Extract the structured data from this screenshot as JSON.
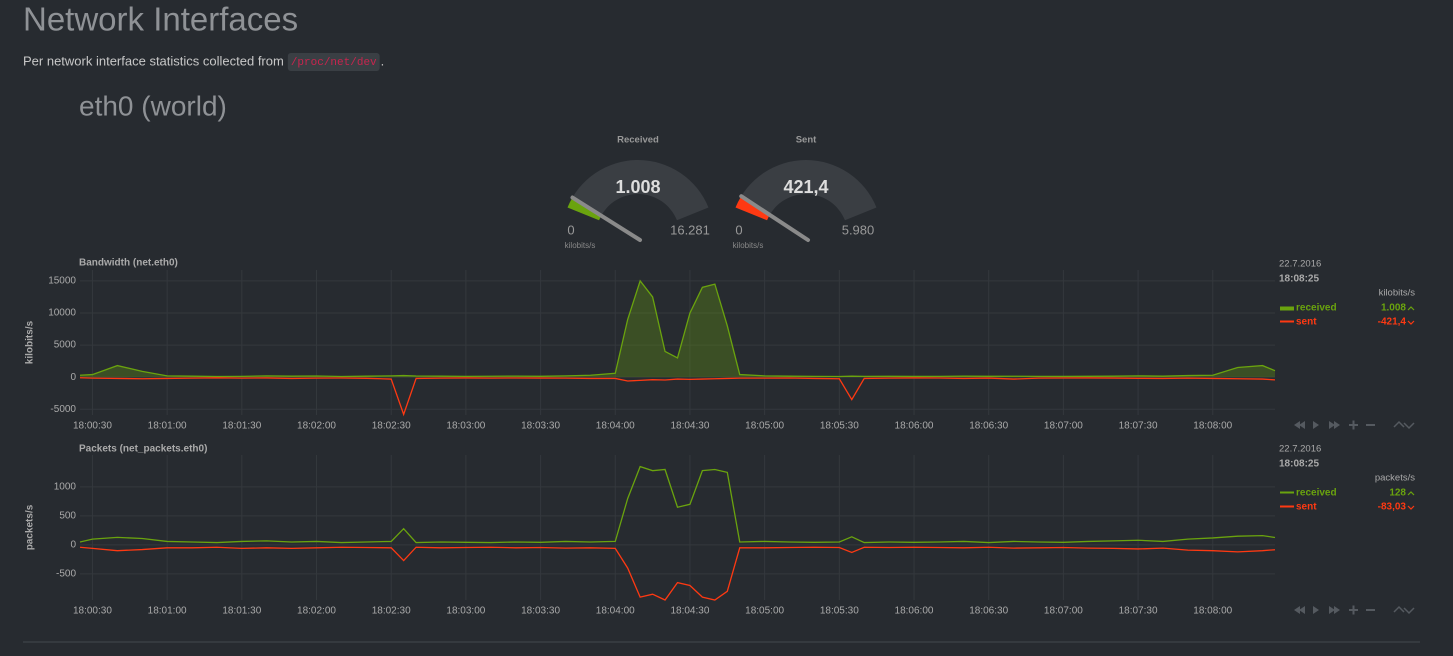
{
  "header": {
    "title": "Network Interfaces",
    "description": "Per network interface statistics collected from ",
    "source": "/proc/net/dev",
    "description_end": "."
  },
  "section": {
    "title": "eth0 (world)"
  },
  "gauges": [
    {
      "title": "Received",
      "value": {
        "value": 1008,
        "label": "1.008"
      },
      "min": 0,
      "max": {
        "value": 16281,
        "label": "16.281"
      },
      "units": "kilobits/s",
      "color": "#6aa30e"
    },
    {
      "title": "Sent",
      "value": {
        "value": 421.4,
        "label": "421,4"
      },
      "min": 0,
      "max": {
        "value": 5980,
        "label": "5.980"
      },
      "units": "kilobits/s",
      "color": "#fe3912"
    }
  ],
  "chart_data": [
    {
      "type": "line",
      "title": "Bandwidth (net.eth0)",
      "y_label": "kilobits/s",
      "units": "kilobits/s",
      "legend_date": "22.7.2016",
      "legend_time": "18:08:25",
      "x": [
        "18:00:25",
        "18:00:30",
        "18:00:40",
        "18:00:50",
        "18:01:00",
        "18:01:10",
        "18:01:20",
        "18:01:30",
        "18:01:40",
        "18:01:50",
        "18:02:00",
        "18:02:10",
        "18:02:20",
        "18:02:30",
        "18:02:35",
        "18:02:40",
        "18:02:50",
        "18:03:00",
        "18:03:10",
        "18:03:20",
        "18:03:30",
        "18:03:40",
        "18:03:50",
        "18:04:00",
        "18:04:05",
        "18:04:10",
        "18:04:15",
        "18:04:20",
        "18:04:25",
        "18:04:30",
        "18:04:35",
        "18:04:40",
        "18:04:45",
        "18:04:50",
        "18:05:00",
        "18:05:10",
        "18:05:20",
        "18:05:30",
        "18:05:35",
        "18:05:40",
        "18:05:50",
        "18:06:00",
        "18:06:10",
        "18:06:20",
        "18:06:30",
        "18:06:40",
        "18:06:50",
        "18:07:00",
        "18:07:10",
        "18:07:20",
        "18:07:30",
        "18:07:40",
        "18:07:50",
        "18:08:00",
        "18:08:10",
        "18:08:20",
        "18:08:25"
      ],
      "xlim": [
        "18:00:25",
        "18:08:25"
      ],
      "xticks": [
        "18:00:30",
        "18:01:00",
        "18:01:30",
        "18:02:00",
        "18:02:30",
        "18:03:00",
        "18:03:30",
        "18:04:00",
        "18:04:30",
        "18:05:00",
        "18:05:30",
        "18:06:00",
        "18:06:30",
        "18:07:00",
        "18:07:30",
        "18:08:00"
      ],
      "ylim": [
        -5900,
        16700
      ],
      "yticks": [
        -5000,
        0,
        5000,
        10000,
        15000
      ],
      "grid": true,
      "series": [
        {
          "name": "received",
          "color": "#6aa30e",
          "fill": true,
          "legend_value": {
            "value": 1008,
            "label": "1.008"
          },
          "values": [
            300,
            400,
            1800,
            900,
            200,
            150,
            100,
            120,
            200,
            150,
            180,
            100,
            150,
            200,
            250,
            180,
            150,
            120,
            140,
            160,
            130,
            200,
            300,
            600,
            9000,
            15000,
            12500,
            4000,
            3000,
            10000,
            14000,
            14500,
            8000,
            400,
            200,
            150,
            120,
            100,
            150,
            120,
            130,
            110,
            120,
            150,
            130,
            140,
            120,
            110,
            130,
            150,
            200,
            150,
            250,
            300,
            1500,
            1800,
            1008
          ]
        },
        {
          "name": "sent",
          "color": "#fe3912",
          "fill": false,
          "legend_value": {
            "value": -421.4,
            "label": "-421,4"
          },
          "values": [
            -100,
            -150,
            -200,
            -250,
            -200,
            -150,
            -100,
            -150,
            -120,
            -200,
            -150,
            -130,
            -180,
            -300,
            -5800,
            -200,
            -150,
            -120,
            -150,
            -130,
            -140,
            -150,
            -200,
            -200,
            -600,
            -500,
            -400,
            -450,
            -300,
            -350,
            -300,
            -250,
            -200,
            -150,
            -150,
            -130,
            -200,
            -250,
            -3500,
            -200,
            -150,
            -120,
            -130,
            -200,
            -140,
            -300,
            -150,
            -130,
            -120,
            -140,
            -180,
            -200,
            -150,
            -200,
            -250,
            -300,
            -421.4
          ]
        }
      ]
    },
    {
      "type": "line",
      "title": "Packets (net_packets.eth0)",
      "y_label": "packets/s",
      "units": "packets/s",
      "legend_date": "22.7.2016",
      "legend_time": "18:08:25",
      "x": [
        "18:00:25",
        "18:00:30",
        "18:00:40",
        "18:00:50",
        "18:01:00",
        "18:01:10",
        "18:01:20",
        "18:01:30",
        "18:01:40",
        "18:01:50",
        "18:02:00",
        "18:02:10",
        "18:02:20",
        "18:02:30",
        "18:02:35",
        "18:02:40",
        "18:02:50",
        "18:03:00",
        "18:03:10",
        "18:03:20",
        "18:03:30",
        "18:03:40",
        "18:03:50",
        "18:04:00",
        "18:04:05",
        "18:04:10",
        "18:04:15",
        "18:04:20",
        "18:04:25",
        "18:04:30",
        "18:04:35",
        "18:04:40",
        "18:04:45",
        "18:04:50",
        "18:05:00",
        "18:05:10",
        "18:05:20",
        "18:05:30",
        "18:05:35",
        "18:05:40",
        "18:05:50",
        "18:06:00",
        "18:06:10",
        "18:06:20",
        "18:06:30",
        "18:06:40",
        "18:06:50",
        "18:07:00",
        "18:07:10",
        "18:07:20",
        "18:07:30",
        "18:07:40",
        "18:07:50",
        "18:08:00",
        "18:08:10",
        "18:08:20",
        "18:08:25"
      ],
      "xlim": [
        "18:00:25",
        "18:08:25"
      ],
      "xticks": [
        "18:00:30",
        "18:01:00",
        "18:01:30",
        "18:02:00",
        "18:02:30",
        "18:03:00",
        "18:03:30",
        "18:04:00",
        "18:04:30",
        "18:05:00",
        "18:05:30",
        "18:06:00",
        "18:06:30",
        "18:07:00",
        "18:07:30",
        "18:08:00"
      ],
      "ylim": [
        -950,
        1550
      ],
      "yticks": [
        -500,
        0,
        500,
        1000
      ],
      "grid": true,
      "series": [
        {
          "name": "received",
          "color": "#6aa30e",
          "fill": false,
          "legend_value": {
            "value": 128,
            "label": "128"
          },
          "values": [
            50,
            100,
            130,
            110,
            60,
            50,
            40,
            60,
            70,
            50,
            60,
            40,
            50,
            60,
            280,
            40,
            50,
            45,
            40,
            50,
            45,
            60,
            50,
            60,
            800,
            1350,
            1280,
            1300,
            650,
            700,
            1280,
            1300,
            1250,
            50,
            60,
            50,
            45,
            50,
            140,
            40,
            50,
            45,
            50,
            60,
            40,
            60,
            50,
            45,
            60,
            70,
            80,
            60,
            100,
            120,
            150,
            160,
            128
          ]
        },
        {
          "name": "sent",
          "color": "#fe3912",
          "fill": false,
          "legend_value": {
            "value": -83.03,
            "label": "-83,03"
          },
          "values": [
            -40,
            -60,
            -100,
            -80,
            -50,
            -50,
            -40,
            -60,
            -50,
            -60,
            -50,
            -40,
            -45,
            -50,
            -270,
            -40,
            -50,
            -45,
            -40,
            -50,
            -45,
            -55,
            -50,
            -60,
            -400,
            -900,
            -850,
            -950,
            -650,
            -700,
            -900,
            -950,
            -800,
            -50,
            -50,
            -45,
            -40,
            -45,
            -130,
            -40,
            -45,
            -40,
            -45,
            -50,
            -40,
            -55,
            -50,
            -45,
            -55,
            -60,
            -70,
            -55,
            -90,
            -100,
            -120,
            -100,
            -83.03
          ]
        }
      ]
    }
  ]
}
